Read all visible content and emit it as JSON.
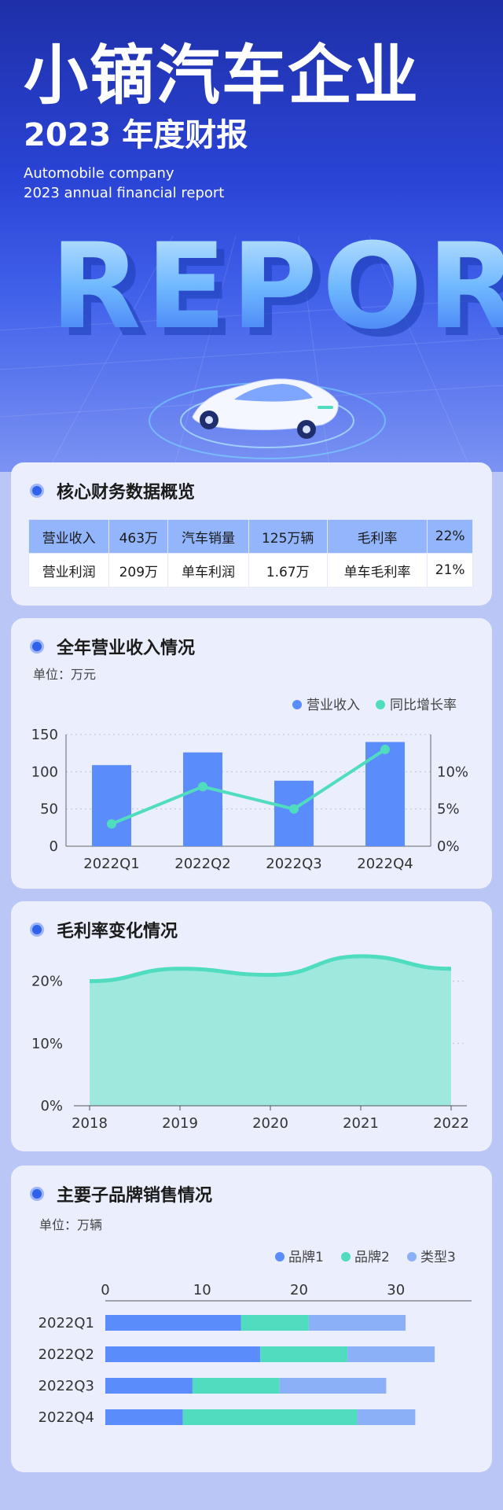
{
  "hero": {
    "title": "小镝汽车企业",
    "subtitle": "2023 年度财报",
    "en_line1": "Automobile company",
    "en_line2": "2023 annual financial report",
    "art_text": "REPORT"
  },
  "overview": {
    "title": "核心财务数据概览",
    "rows": [
      [
        "营业收入",
        "463万",
        "汽车销量",
        "125万辆",
        "毛利率",
        "22%"
      ],
      [
        "营业利润",
        "209万",
        "单车利润",
        "1.67万",
        "单车毛利率",
        "21%"
      ]
    ]
  },
  "revenue": {
    "title": "全年营业收入情况",
    "unit": "单位：万元"
  },
  "margin": {
    "title": "毛利率变化情况"
  },
  "brands": {
    "title": "主要子品牌销售情况",
    "unit": "单位：万辆"
  },
  "colors": {
    "accent": "#2f62e8",
    "bar_blue": "#5b8cfb",
    "teal": "#4fdcbf",
    "teal_fill": "#9fe8dd",
    "light_blue": "#8cb0f8"
  },
  "chart_data": [
    {
      "type": "bar",
      "categories": [
        "2022Q1",
        "2022Q2",
        "2022Q3",
        "2022Q4"
      ],
      "series": [
        {
          "name": "营业收入",
          "type": "bar",
          "axis": "left",
          "values": [
            109,
            126,
            88,
            140
          ]
        },
        {
          "name": "同比增长率",
          "type": "line",
          "axis": "right",
          "values": [
            3,
            8,
            5,
            13
          ]
        }
      ],
      "ylim": [
        0,
        150
      ],
      "yticks": [
        "0",
        "50",
        "100",
        "150"
      ],
      "y2lim": [
        0,
        15
      ],
      "y2ticks": [
        "0%",
        "5%",
        "10%"
      ],
      "legend": "top-right"
    },
    {
      "type": "area",
      "x": [
        "2018",
        "2019",
        "2020",
        "2021",
        "2022"
      ],
      "values": [
        20,
        22,
        21,
        24,
        22
      ],
      "ylim": [
        0,
        25
      ],
      "yticks": [
        "0%",
        "10%",
        "20%"
      ]
    },
    {
      "type": "bar",
      "orientation": "horizontal",
      "stacked": true,
      "categories": [
        "2022Q1",
        "2022Q2",
        "2022Q3",
        "2022Q4"
      ],
      "series": [
        {
          "name": "品牌1",
          "values": [
            14,
            16,
            9,
            8
          ]
        },
        {
          "name": "品牌2",
          "values": [
            7,
            9,
            9,
            18
          ]
        },
        {
          "name": "类型3",
          "values": [
            10,
            9,
            11,
            6
          ]
        }
      ],
      "xlim": [
        0,
        37
      ],
      "xticks": [
        "0",
        "10",
        "20",
        "30"
      ],
      "legend": "top-right"
    }
  ]
}
